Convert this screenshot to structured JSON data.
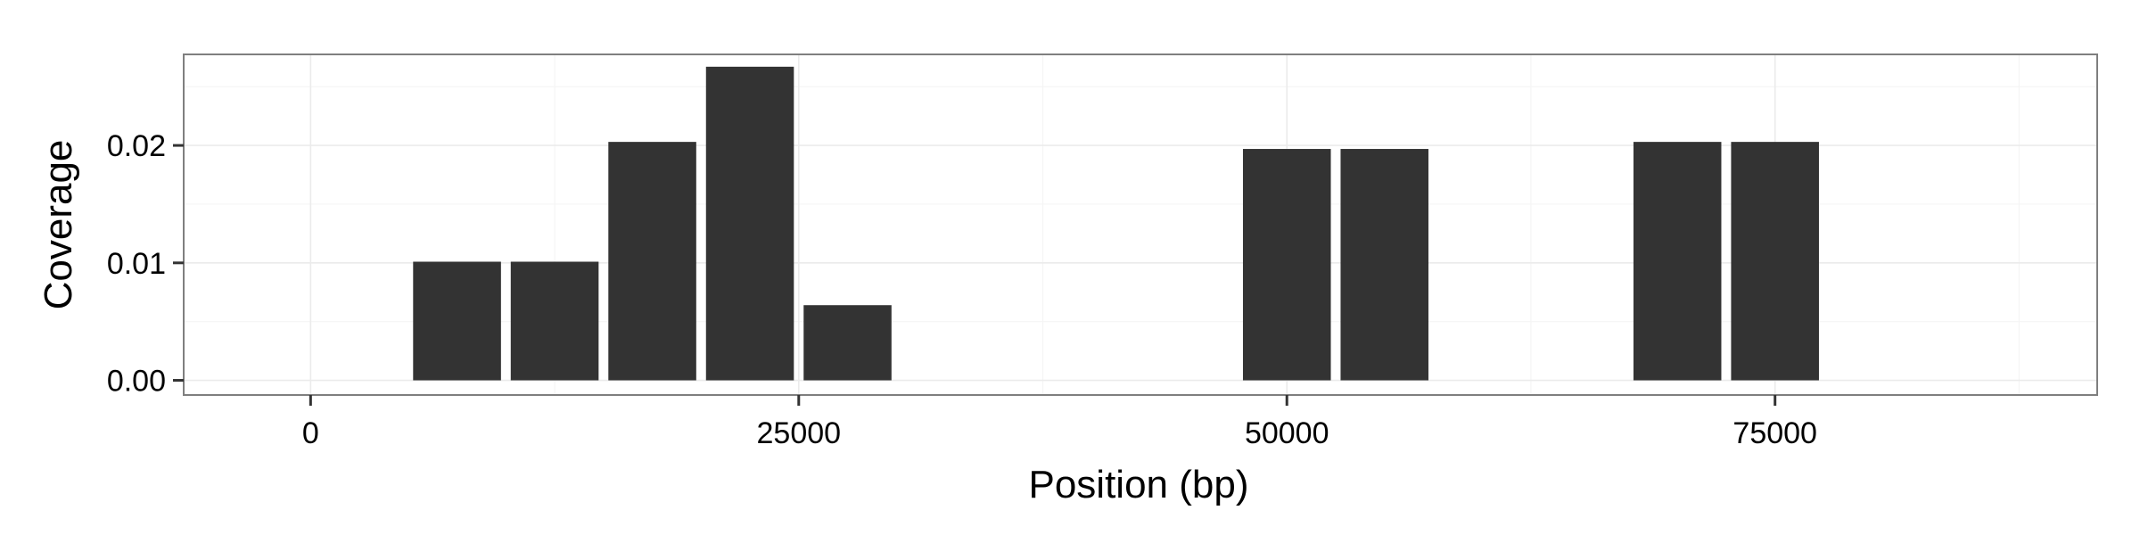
{
  "chart_data": {
    "type": "bar",
    "title": "",
    "xlabel": "Position (bp)",
    "ylabel": "Coverage",
    "xlim": [
      -6500,
      91500
    ],
    "ylim": [
      -0.00125,
      0.02775
    ],
    "x_ticks": [
      0,
      25000,
      50000,
      75000
    ],
    "x_tick_labels": [
      "0",
      "25000",
      "50000",
      "75000"
    ],
    "y_ticks": [
      0.0,
      0.01,
      0.02
    ],
    "y_tick_labels": [
      "0.00",
      "0.01",
      "0.02"
    ],
    "bin_width": 5000,
    "x": [
      10000,
      15000,
      20000,
      25000,
      30000,
      52500,
      57500,
      72500,
      77500
    ],
    "values": [
      0.0101,
      0.0101,
      0.0203,
      0.0267,
      0.0064,
      0.0197,
      0.0197,
      0.0203,
      0.0203
    ],
    "grid": true,
    "legend": "none",
    "colors": {
      "bar": "#333333",
      "panel_border": "#7f7f7f",
      "grid_major": "#ebebeb",
      "grid_minor": "#f5f5f5",
      "tick": "#333333"
    }
  }
}
